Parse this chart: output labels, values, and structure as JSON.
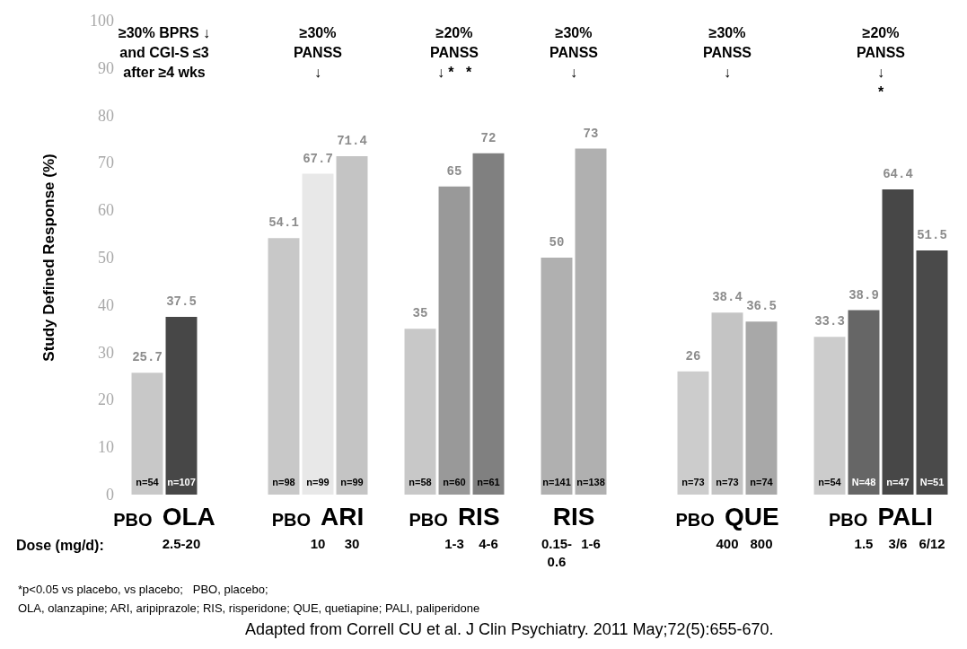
{
  "chart_data": {
    "type": "bar",
    "ylabel": "Study Defined Response (%)",
    "xlabel": "Dose (mg/d):",
    "categories": [
      null,
      "2.5-20",
      null,
      null,
      null,
      "10",
      "30",
      null,
      null,
      "1-3",
      "4-6",
      null,
      "0.15-\n0.6",
      "1-6",
      null,
      null,
      null,
      "400",
      "800",
      null,
      null,
      "1.5",
      "3/6",
      "6/12"
    ],
    "values": [
      25.7,
      37.5,
      null,
      null,
      54.1,
      67.7,
      71.4,
      null,
      35,
      65,
      72,
      null,
      50,
      73,
      null,
      null,
      26,
      38.4,
      36.5,
      null,
      33.3,
      38.9,
      64.4,
      51.5
    ],
    "colors": [
      "#c8c8c8",
      "#474747",
      null,
      null,
      "#c8c8c8",
      "#e8e8e8",
      "#c4c4c4",
      null,
      "#c8c8c8",
      "#999999",
      "#808080",
      null,
      "#b0b0b0",
      "#b0b0b0",
      null,
      null,
      "#cccccc",
      "#c4c4c4",
      "#a8a8a8",
      null,
      "#cccccc",
      "#666666",
      "#474747",
      "#4a4a4a"
    ],
    "data_labels": true,
    "ylim": [
      0,
      100
    ],
    "yticks": [
      0,
      10,
      20,
      30,
      40,
      50,
      60,
      70,
      80,
      90,
      100
    ],
    "grid": false,
    "annotations": [
      "≥30% BPRS ↓\nand CGI-S ≤3\nafter ≥4 wks",
      "≥30%\nPANSS\n↓",
      "≥20%\nPANSS\n↓ *   *",
      "≥30%\nPANSS\n↓",
      "≥30%\nPANSS\n↓",
      "≥20%\nPANSS\n↓\n*",
      "PBO OLA",
      "PBO ARI",
      "PBO RIS",
      "RIS",
      "PBO QUE",
      "PBO PALI",
      "n=54",
      "n=107",
      "n=98",
      "n=99",
      "n=99",
      "n=58",
      "n=60",
      "n=61",
      "n=141",
      "n=138",
      "n=73",
      "n=73",
      "n=74",
      "n=54",
      "N=48",
      "n=47",
      "N=51",
      "*p<0.05 vs placebo, vs placebo;   PBO, placebo;",
      "OLA, olanzapine; ARI, aripiprazole; RIS, risperidone; QUE, quetiapine; PALI, paliperidone",
      "Adapted from Correll CU et al. J Clin Psychiatry. 2011 May;72(5):655-670."
    ]
  }
}
